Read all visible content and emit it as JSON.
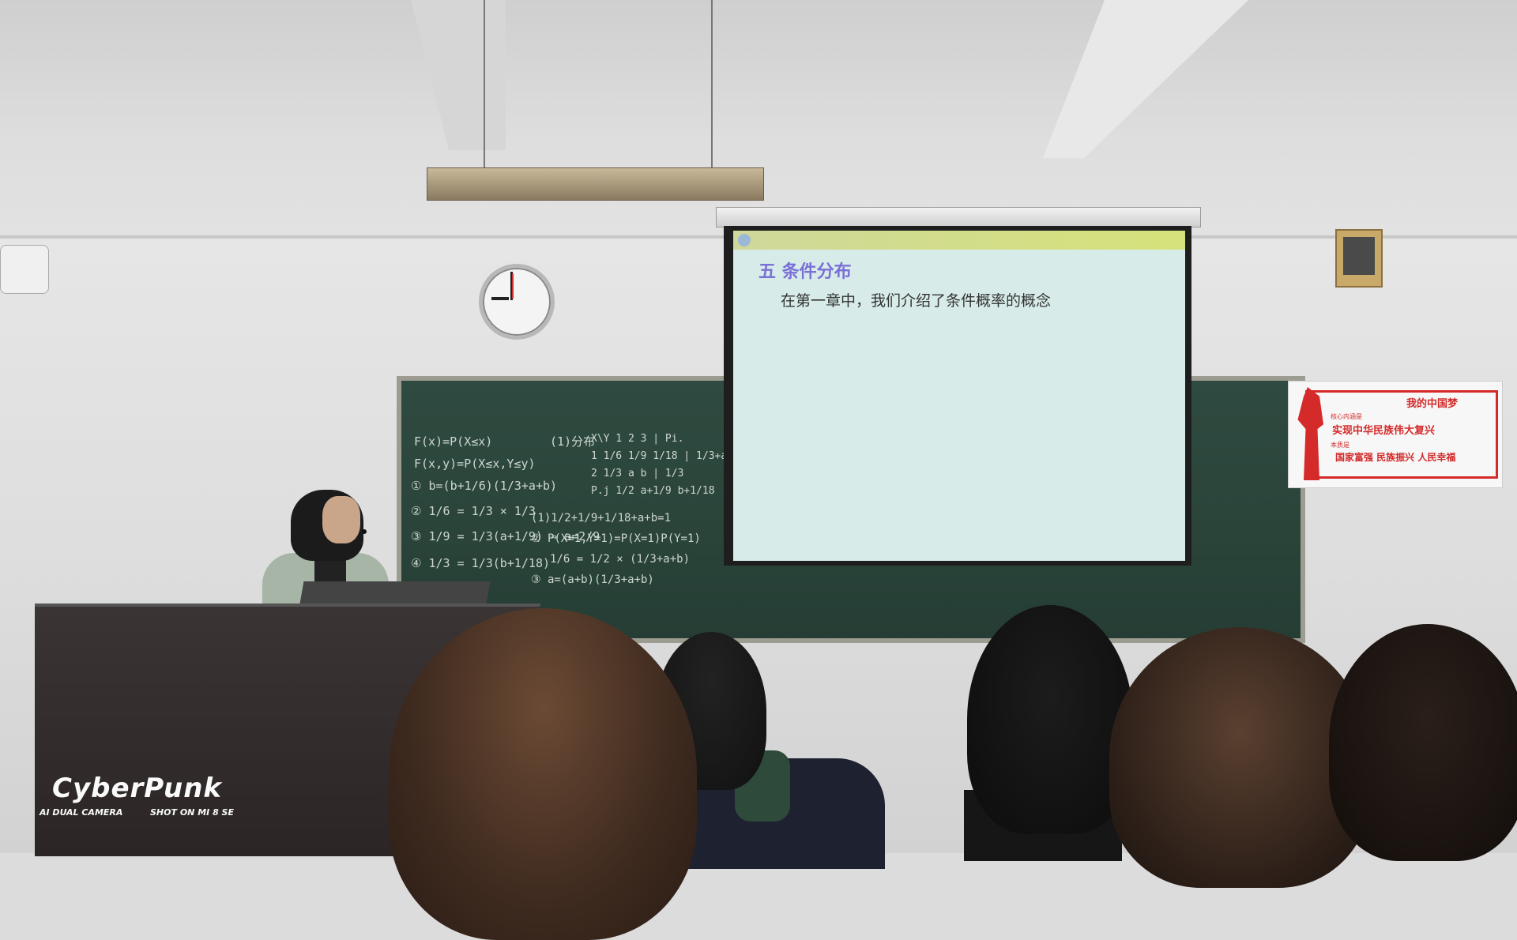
{
  "slide": {
    "title": "五  条件分布",
    "body": "在第一章中，我们介绍了条件概率的概念"
  },
  "poster": {
    "heading": "我的中国梦",
    "line1_label": "核心内涵是",
    "line1": "实现中华民族伟大复兴",
    "line2_label": "本质是",
    "line2": "国家富强  民族振兴  人民幸福"
  },
  "blackboard": {
    "lines": [
      "F(x)=P(X≤x)",
      "F(x,y)=P(X≤x,Y≤y)",
      "① b=(b+1/6)(1/3+a+b)",
      "② 1/6 = 1/3 × 1/3",
      "③ 1/9 = 1/3(a+1/9) ⇒ a=2/9",
      "④ 1/3 = 1/3(b+1/18)",
      "(1)分布",
      "X\\Y  1   2   3  | Pi.",
      "1    1/6 1/9 1/18 | 1/3+a+b",
      "2    1/3  a   b   | 1/3",
      "P.j  1/2 a+1/9 b+1/18",
      "(1)1/2+1/9+1/18+a+b=1",
      "② P(X=1,Y=1)=P(X=1)P(Y=1)",
      "1/6 = 1/2 × (1/3+a+b)",
      "③ a=(a+b)(1/3+a+b)"
    ]
  },
  "watermark": {
    "logo": "CyberPunk",
    "left": "AI DUAL CAMERA",
    "right": "SHOT ON MI 8 SE"
  },
  "colors": {
    "slide_title": "#7a6fd6",
    "slide_background": "#d7ece9",
    "blackboard": "#2c463c",
    "poster_red": "#d42a2a"
  }
}
